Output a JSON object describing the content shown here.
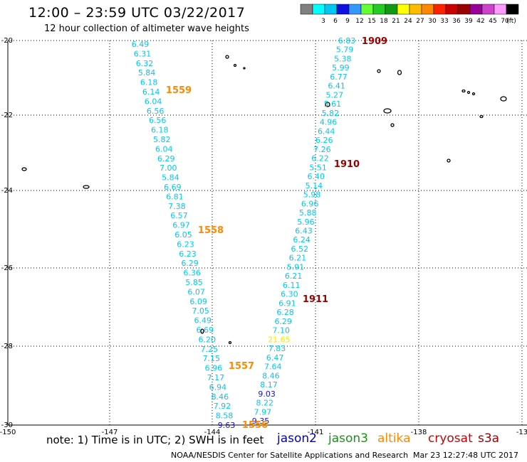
{
  "title": "12:00 – 23:59 UTC 03/22/2017",
  "subtitle": "12 hour collection of altimeter wave heights",
  "legend": {
    "unit": "(ft)",
    "swatches": [
      {
        "color": "#808080",
        "label": ""
      },
      {
        "color": "#00ffff",
        "label": "3"
      },
      {
        "color": "#00c8f0",
        "label": "6"
      },
      {
        "color": "#1010e0",
        "label": "9"
      },
      {
        "color": "#3399ff",
        "label": "12"
      },
      {
        "color": "#66ff33",
        "label": "15"
      },
      {
        "color": "#22cc22",
        "label": "18"
      },
      {
        "color": "#119911",
        "label": "21"
      },
      {
        "color": "#ffff00",
        "label": "24"
      },
      {
        "color": "#ffbb00",
        "label": "27"
      },
      {
        "color": "#ff8800",
        "label": "30"
      },
      {
        "color": "#ff2200",
        "label": "33"
      },
      {
        "color": "#cc0000",
        "label": "36"
      },
      {
        "color": "#990000",
        "label": "39"
      },
      {
        "color": "#990099",
        "label": "42"
      },
      {
        "color": "#cc44cc",
        "label": "45"
      },
      {
        "color": "#ff99ff",
        "label": "70"
      },
      {
        "color": "#000000",
        "label": ""
      }
    ]
  },
  "axes": {
    "lat_labels": [
      "-20",
      "-22",
      "-24",
      "-26",
      "-28",
      "-30"
    ],
    "lon_labels": [
      "-150",
      "-147",
      "-144",
      "-141",
      "-138",
      "-13"
    ]
  },
  "track_left": {
    "values": [
      "6.49",
      "6.31",
      "6.32",
      "5.84",
      "6.18",
      "6.14",
      "6.04",
      "6.56",
      "6.56",
      "6.18",
      "5.82",
      "6.04",
      "6.29",
      "7.00",
      "5.84",
      "6.69",
      "6.81",
      "7.38",
      "6.57",
      "6.97",
      "6.05",
      "6.23",
      "6.23",
      "6.29",
      "6.36",
      "5.85",
      "6.07",
      "6.09",
      "7.05",
      "6.49",
      "6.69",
      "6.20",
      "7.25",
      "7.15",
      "6.96",
      "7.17",
      "6.94",
      "8.46",
      "7.92",
      "8.58",
      "9.63"
    ],
    "colors": {
      "6.96": "#00c8f0",
      "9.63": "#1010e0"
    }
  },
  "track_right": {
    "values": [
      "6.83",
      "5.79",
      "5.38",
      "5.99",
      "6.77",
      "6.41",
      "5.27",
      "5.61",
      "5.82",
      "4.96",
      "6.44",
      "6.26",
      "7.26",
      "6.22",
      "5.51",
      "6.40",
      "5.14",
      "5.98",
      "6.96",
      "5.88",
      "5.96",
      "6.43",
      "6.24",
      "6.52",
      "6.21",
      "5.91",
      "6.21",
      "6.11",
      "6.30",
      "6.91",
      "6.28",
      "6.29",
      "7.10",
      "21.65",
      "7.83",
      "6.47",
      "7.64",
      "8.46",
      "8.17",
      "9.03",
      "8.22",
      "7.97",
      "9.35"
    ]
  },
  "times": [
    {
      "text": "1909",
      "color": "#990000"
    },
    {
      "text": "1559",
      "color": "#ff8800"
    },
    {
      "text": "1910",
      "color": "#990000"
    },
    {
      "text": "1558",
      "color": "#ff8800"
    },
    {
      "text": "1911",
      "color": "#990000"
    },
    {
      "text": "1557",
      "color": "#ff8800"
    },
    {
      "text": "1556",
      "color": "#ff8800"
    }
  ],
  "footer": {
    "note": "note: 1) Time is in UTC; 2) SWH is in feet",
    "satellites": [
      {
        "name": "jason2",
        "color": "#0000cc"
      },
      {
        "name": "jason3",
        "color": "#119911"
      },
      {
        "name": "altika",
        "color": "#ff8800"
      },
      {
        "name": "cryosat",
        "color": "#cc0000"
      },
      {
        "name": "s3a",
        "color": "#990000"
      }
    ],
    "credit": "NOAA/NESDIS Center for Satellite Applications and Research",
    "timestamp": "Mar 23 12:27:48 UTC 2017"
  }
}
